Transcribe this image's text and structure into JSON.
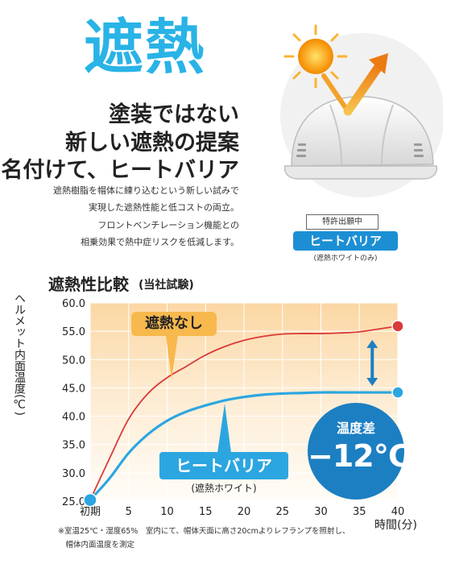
{
  "hero": {
    "title": "遮熱",
    "headline": [
      "塗装ではない",
      "新しい遮熱の提案",
      "名付けて、ヒートバリア"
    ],
    "description": [
      "遮熱樹脂を帽体に練り込むという新しい試みで",
      "実現した遮熱性能と低コストの両立。",
      "フロントベンチレーション機能との",
      "相乗効果で熱中症リスクを低減します。"
    ]
  },
  "badge": {
    "patent": "特許出願中",
    "name": "ヒートバリア",
    "note": "(遮熱ホワイトのみ)"
  },
  "colors": {
    "brand_blue": "#29b3e6",
    "series_off": "#d93a3a",
    "series_heat": "#2ca6e0",
    "callout_orange": "#f7b94d",
    "diff_blue": "#1c7fc2"
  },
  "chart_data": {
    "type": "line",
    "title": "遮熱性比較",
    "subtitle": "(当社試験)",
    "ylabel": "ヘルメット内面温度(℃)",
    "xlabel": "時間(分)",
    "xlim": [
      0,
      40
    ],
    "ylim": [
      25,
      60
    ],
    "x_ticks": [
      {
        "value": 0,
        "label": "初期"
      },
      {
        "value": 5,
        "label": "5"
      },
      {
        "value": 10,
        "label": "10"
      },
      {
        "value": 15,
        "label": "15"
      },
      {
        "value": 20,
        "label": "20"
      },
      {
        "value": 25,
        "label": "25"
      },
      {
        "value": 30,
        "label": "30"
      },
      {
        "value": 35,
        "label": "35"
      },
      {
        "value": 40,
        "label": "40"
      }
    ],
    "y_ticks": [
      {
        "value": 25,
        "label": "25.0"
      },
      {
        "value": 30,
        "label": "30.0"
      },
      {
        "value": 35,
        "label": "35.0"
      },
      {
        "value": 40,
        "label": "40.0"
      },
      {
        "value": 45,
        "label": "45.0"
      },
      {
        "value": 50,
        "label": "50.0"
      },
      {
        "value": 55,
        "label": "55.0"
      },
      {
        "value": 60,
        "label": "60.0"
      }
    ],
    "grid": true,
    "series": [
      {
        "name": "遮熱なし",
        "color": "#d93a3a",
        "x": [
          0,
          2.5,
          5,
          7.5,
          10,
          12.5,
          15,
          17.5,
          20,
          22.5,
          25,
          27.5,
          30,
          32.5,
          35,
          37.5,
          40
        ],
        "y": [
          25.2,
          32.5,
          39.5,
          44.0,
          46.8,
          48.8,
          50.8,
          52.3,
          53.4,
          54.1,
          54.5,
          54.6,
          54.6,
          54.7,
          54.9,
          55.4,
          55.9
        ]
      },
      {
        "name": "ヒートバリア",
        "color": "#2ca6e0",
        "x": [
          0,
          2.5,
          5,
          7.5,
          10,
          12.5,
          15,
          17.5,
          20,
          22.5,
          25,
          27.5,
          30,
          32.5,
          35,
          37.5,
          40
        ],
        "y": [
          25.2,
          29.0,
          33.5,
          36.8,
          39.2,
          40.8,
          41.9,
          42.8,
          43.4,
          43.8,
          44.0,
          44.1,
          44.2,
          44.2,
          44.2,
          44.2,
          44.2
        ]
      }
    ],
    "annotations": {
      "series_off_label": "遮熱なし",
      "series_heat_label": "ヒートバリア",
      "series_heat_sublabel": "(遮熱ホワイト)",
      "difference_label": "温度差",
      "difference_value": "−12℃"
    }
  },
  "footnote": [
    "※室温25℃・湿度65%　室内にて、帽体天面に高さ20cmよりレフランプを照射し、",
    "　帽体内面温度を測定"
  ]
}
